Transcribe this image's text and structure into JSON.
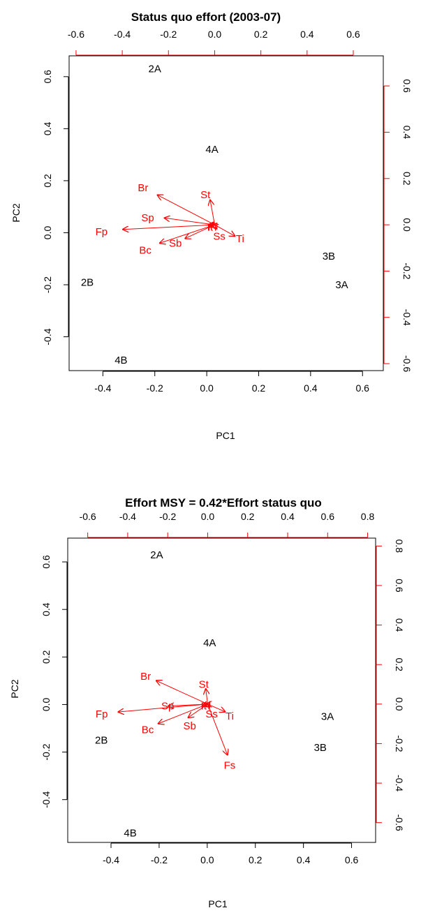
{
  "chart_data": [
    {
      "type": "scatter",
      "subtype": "biplot",
      "title": "Status quo effort (2003-07)",
      "xlabel": "PC1",
      "ylabel": "PC2",
      "xlim": [
        -0.53,
        0.68
      ],
      "ylim": [
        -0.53,
        0.68
      ],
      "xticks": [
        -0.4,
        -0.2,
        0.0,
        0.2,
        0.4,
        0.6
      ],
      "yticks": [
        -0.4,
        -0.2,
        0.0,
        0.2,
        0.4,
        0.6
      ],
      "xtick_labels": [
        "-0.4",
        "-0.2",
        "0.0",
        "0.2",
        "0.4",
        "0.6"
      ],
      "ytick_labels": [
        "-0.4",
        "-0.2",
        "0.0",
        "0.2",
        "0.4",
        "0.6"
      ],
      "secondary_xlim": [
        -0.63,
        0.73
      ],
      "secondary_ylim": [
        -0.63,
        0.73
      ],
      "secondary_xticks": [
        -0.6,
        -0.4,
        -0.2,
        0.0,
        0.2,
        0.4,
        0.6
      ],
      "secondary_yticks": [
        -0.6,
        -0.4,
        -0.2,
        0.0,
        0.2,
        0.4,
        0.6
      ],
      "secondary_xtick_labels": [
        "-0.6",
        "-0.4",
        "-0.2",
        "0.0",
        "0.2",
        "0.4",
        "0.6"
      ],
      "secondary_ytick_labels": [
        "-0.6",
        "-0.4",
        "-0.2",
        "0.0",
        "0.2",
        "0.4",
        "0.6"
      ],
      "secondary_color": "#ff0000",
      "scores": [
        {
          "label": "2A",
          "x": -0.2,
          "y": 0.63
        },
        {
          "label": "4A",
          "x": 0.02,
          "y": 0.32
        },
        {
          "label": "3B",
          "x": 0.47,
          "y": -0.09
        },
        {
          "label": "3A",
          "x": 0.52,
          "y": -0.2
        },
        {
          "label": "2B",
          "x": -0.46,
          "y": -0.19
        },
        {
          "label": "4B",
          "x": -0.33,
          "y": -0.49
        }
      ],
      "loadings": [
        {
          "label": "Fp",
          "x": -0.4,
          "y": -0.02,
          "lx": -0.49,
          "ly": -0.03
        },
        {
          "label": "Br",
          "x": -0.25,
          "y": 0.13,
          "lx": -0.31,
          "ly": 0.16
        },
        {
          "label": "Sp",
          "x": -0.22,
          "y": 0.03,
          "lx": -0.29,
          "ly": 0.03
        },
        {
          "label": "Bc",
          "x": -0.24,
          "y": -0.08,
          "lx": -0.3,
          "ly": -0.11
        },
        {
          "label": "Sb",
          "x": -0.13,
          "y": -0.06,
          "lx": -0.17,
          "ly": -0.08
        },
        {
          "label": "St",
          "x": -0.02,
          "y": 0.11,
          "lx": -0.04,
          "ly": 0.13
        },
        {
          "label": "Ss",
          "x": 0.01,
          "y": -0.02,
          "lx": 0.02,
          "ly": -0.05
        },
        {
          "label": "Ti",
          "x": 0.09,
          "y": -0.05,
          "lx": 0.11,
          "ly": -0.06
        },
        {
          "label": "It",
          "x": -0.03,
          "y": 0.0,
          "lx": -0.02,
          "ly": -0.01
        },
        {
          "label": "Ff",
          "x": -0.01,
          "y": 0.01,
          "lx": -0.01,
          "ly": -0.01
        }
      ]
    },
    {
      "type": "scatter",
      "subtype": "biplot",
      "title": "Effort MSY = 0.42*Effort status quo",
      "xlabel": "PC1",
      "ylabel": "PC2",
      "xlim": [
        -0.58,
        0.7
      ],
      "ylim": [
        -0.58,
        0.7
      ],
      "xticks": [
        -0.4,
        -0.2,
        0.0,
        0.2,
        0.4,
        0.6
      ],
      "yticks": [
        -0.4,
        -0.2,
        0.0,
        0.2,
        0.4,
        0.6
      ],
      "xtick_labels": [
        "-0.4",
        "-0.2",
        "0.0",
        "0.2",
        "0.4",
        "0.6"
      ],
      "ytick_labels": [
        "-0.4",
        "-0.2",
        "0.0",
        "0.2",
        "0.4",
        "0.6"
      ],
      "secondary_xlim": [
        -0.7,
        0.84
      ],
      "secondary_ylim": [
        -0.7,
        0.84
      ],
      "secondary_xticks": [
        -0.6,
        -0.4,
        -0.2,
        0.0,
        0.2,
        0.4,
        0.6,
        0.8
      ],
      "secondary_yticks": [
        -0.6,
        -0.4,
        -0.2,
        0.0,
        0.2,
        0.4,
        0.6,
        0.8
      ],
      "secondary_xtick_labels": [
        "-0.6",
        "-0.4",
        "-0.2",
        "0.0",
        "0.2",
        "0.4",
        "0.6",
        "0.8"
      ],
      "secondary_ytick_labels": [
        "-0.6",
        "-0.4",
        "-0.2",
        "0.0",
        "0.2",
        "0.4",
        "0.6",
        "0.8"
      ],
      "secondary_color": "#ff0000",
      "scores": [
        {
          "label": "2A",
          "x": -0.21,
          "y": 0.63
        },
        {
          "label": "4A",
          "x": 0.01,
          "y": 0.26
        },
        {
          "label": "3A",
          "x": 0.5,
          "y": -0.05
        },
        {
          "label": "3B",
          "x": 0.47,
          "y": -0.18
        },
        {
          "label": "2B",
          "x": -0.44,
          "y": -0.15
        },
        {
          "label": "4B",
          "x": -0.32,
          "y": -0.54
        }
      ],
      "loadings": [
        {
          "label": "Fp",
          "x": -0.45,
          "y": -0.04,
          "lx": -0.53,
          "ly": -0.05
        },
        {
          "label": "Br",
          "x": -0.26,
          "y": 0.12,
          "lx": -0.31,
          "ly": 0.14
        },
        {
          "label": "Sp",
          "x": -0.2,
          "y": -0.01,
          "lx": -0.2,
          "ly": -0.01
        },
        {
          "label": "Bc",
          "x": -0.25,
          "y": -0.1,
          "lx": -0.3,
          "ly": -0.13
        },
        {
          "label": "Sb",
          "x": -0.1,
          "y": -0.07,
          "lx": -0.09,
          "ly": -0.11
        },
        {
          "label": "St",
          "x": -0.01,
          "y": 0.08,
          "lx": -0.02,
          "ly": 0.1
        },
        {
          "label": "Ss",
          "x": 0.01,
          "y": -0.02,
          "lx": 0.02,
          "ly": -0.05
        },
        {
          "label": "Ti",
          "x": 0.09,
          "y": -0.04,
          "lx": 0.11,
          "ly": -0.06
        },
        {
          "label": "Fs",
          "x": 0.1,
          "y": -0.26,
          "lx": 0.11,
          "ly": -0.31
        },
        {
          "label": "It",
          "x": -0.03,
          "y": -0.01,
          "lx": -0.02,
          "ly": -0.01
        },
        {
          "label": "Ff",
          "x": -0.01,
          "y": 0.0,
          "lx": -0.01,
          "ly": -0.01
        }
      ]
    }
  ]
}
